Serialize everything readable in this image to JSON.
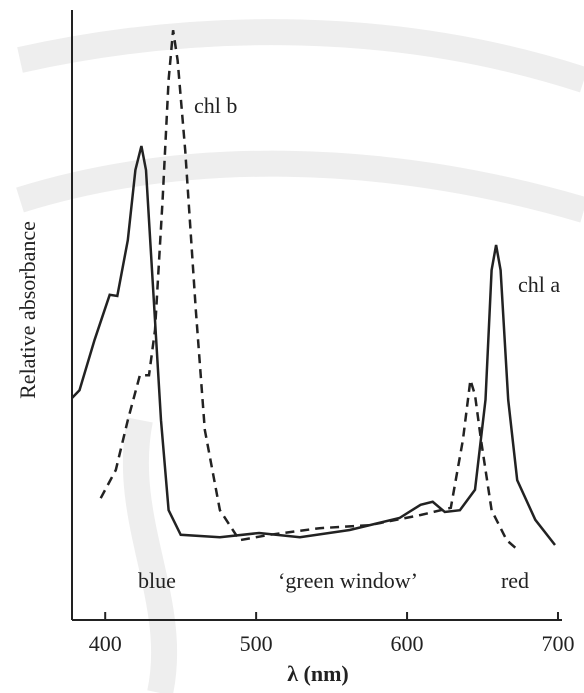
{
  "chart_data": {
    "type": "line",
    "y_label": "Relative absorbance",
    "x_label": "λ (nm)",
    "xlim": [
      378,
      702
    ],
    "xticks": [
      400,
      500,
      600,
      700
    ],
    "ylim": [
      0,
      1
    ],
    "annotations": [
      "blue",
      "‘green window’",
      "red"
    ],
    "series": [
      {
        "name": "chl a",
        "color": "#222222",
        "dash": false,
        "x": [
          378,
          383,
          393,
          403,
          408,
          415,
          420,
          424,
          427,
          431,
          437,
          442,
          450,
          476,
          502,
          529,
          562,
          595,
          609,
          617,
          625,
          635,
          645,
          652,
          656,
          659,
          662,
          667,
          673,
          685,
          698
        ],
        "values": [
          0.37,
          0.383,
          0.467,
          0.542,
          0.54,
          0.633,
          0.75,
          0.79,
          0.75,
          0.583,
          0.333,
          0.183,
          0.142,
          0.138,
          0.145,
          0.138,
          0.15,
          0.17,
          0.192,
          0.197,
          0.18,
          0.183,
          0.217,
          0.367,
          0.583,
          0.625,
          0.583,
          0.367,
          0.233,
          0.167,
          0.125
        ]
      },
      {
        "name": "chl b",
        "color": "#222222",
        "dash": true,
        "x": [
          397,
          407,
          415,
          423,
          429,
          433,
          438,
          442,
          445,
          448,
          453,
          460,
          466,
          476,
          489,
          509,
          542,
          575,
          609,
          629,
          637,
          642,
          645,
          649,
          656,
          666,
          672
        ],
        "values": [
          0.203,
          0.25,
          0.333,
          0.408,
          0.408,
          0.483,
          0.7,
          0.9,
          0.983,
          0.933,
          0.783,
          0.517,
          0.317,
          0.183,
          0.133,
          0.142,
          0.153,
          0.158,
          0.175,
          0.187,
          0.3,
          0.4,
          0.375,
          0.3,
          0.183,
          0.133,
          0.12
        ]
      }
    ]
  }
}
